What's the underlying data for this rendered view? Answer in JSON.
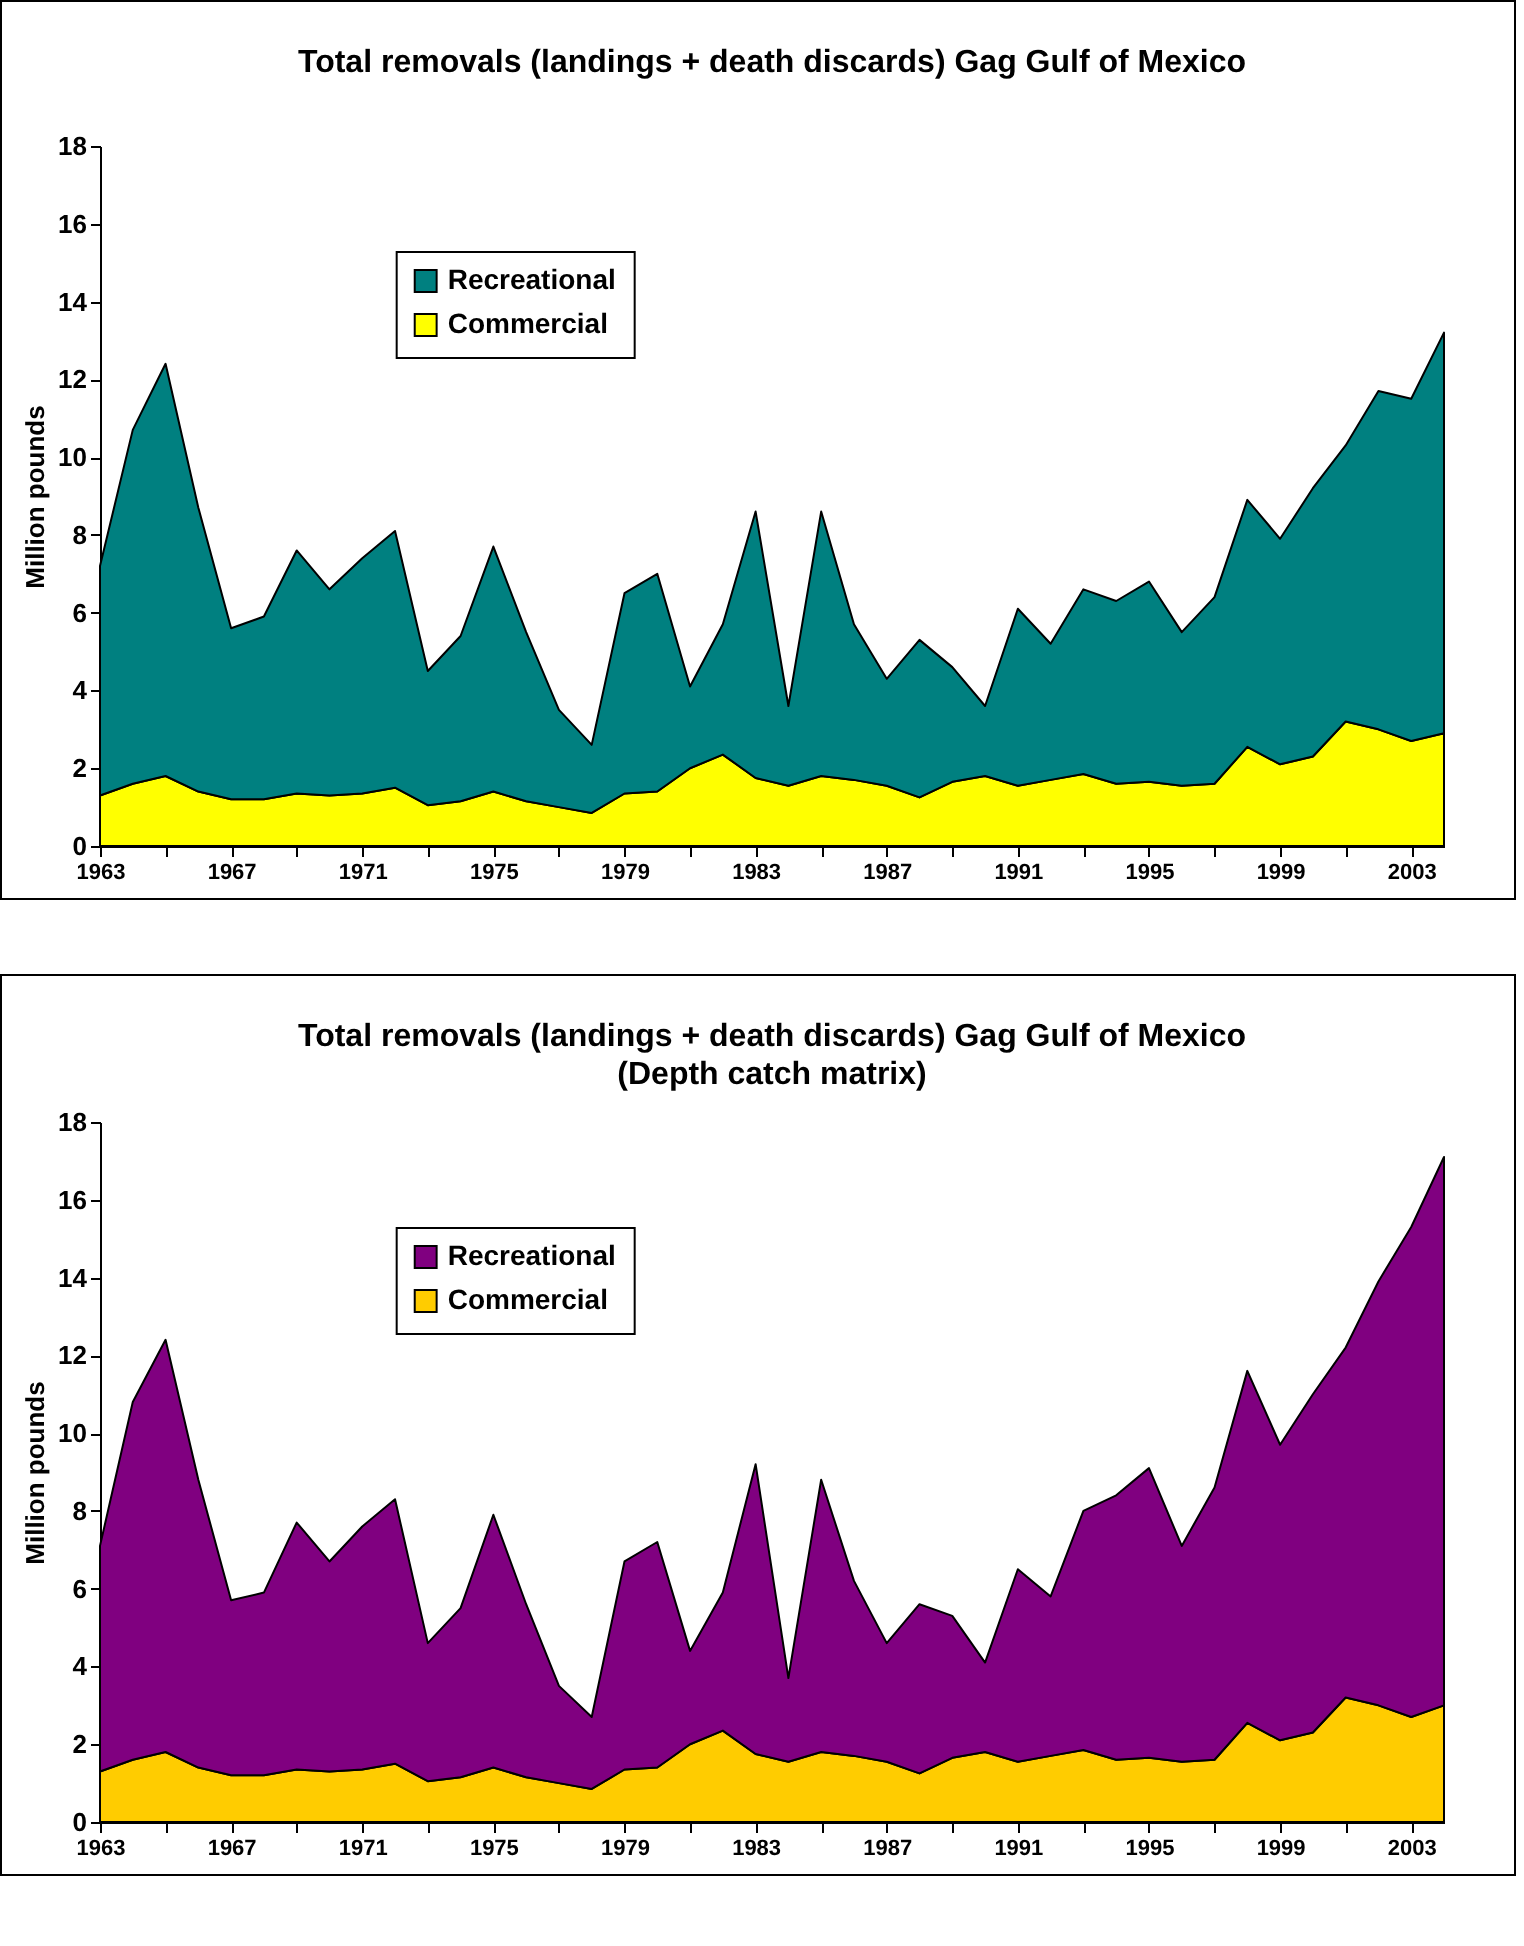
{
  "chart_data": [
    {
      "type": "area",
      "title": "Total removals (landings + death discards) Gag Gulf of Mexico",
      "ylabel": "Million pounds",
      "stacked": true,
      "x": [
        1963,
        1964,
        1965,
        1966,
        1967,
        1968,
        1969,
        1970,
        1971,
        1972,
        1973,
        1974,
        1975,
        1976,
        1977,
        1978,
        1979,
        1980,
        1981,
        1982,
        1983,
        1984,
        1985,
        1986,
        1987,
        1988,
        1989,
        1990,
        1991,
        1992,
        1993,
        1994,
        1995,
        1996,
        1997,
        1998,
        1999,
        2000,
        2001,
        2002,
        2003,
        2004
      ],
      "series": [
        {
          "name": "Commercial",
          "color": "#ffff00",
          "values": [
            1.3,
            1.6,
            1.8,
            1.4,
            1.2,
            1.2,
            1.35,
            1.3,
            1.35,
            1.5,
            1.05,
            1.15,
            1.4,
            1.15,
            1.0,
            0.85,
            1.35,
            1.4,
            2.0,
            2.35,
            1.75,
            1.55,
            1.8,
            1.7,
            1.55,
            1.25,
            1.65,
            1.8,
            1.55,
            1.7,
            1.85,
            1.6,
            1.65,
            1.55,
            1.6,
            2.55,
            2.1,
            2.3,
            3.2,
            3.0,
            2.7,
            2.9
          ]
        },
        {
          "name": "Recreational",
          "color": "#008080",
          "values": [
            5.9,
            9.1,
            10.6,
            7.3,
            4.4,
            4.7,
            6.25,
            5.3,
            6.05,
            6.6,
            3.45,
            4.25,
            6.3,
            4.35,
            2.5,
            1.75,
            5.15,
            5.6,
            2.1,
            3.35,
            6.85,
            2.05,
            6.8,
            4.0,
            2.75,
            4.05,
            2.95,
            1.8,
            4.55,
            3.5,
            4.75,
            4.7,
            5.15,
            3.95,
            4.8,
            6.35,
            5.8,
            6.9,
            7.1,
            8.7,
            8.8,
            10.3
          ]
        }
      ],
      "xlim": [
        1963,
        2004
      ],
      "xticks": [
        1963,
        {
          "value": 1965,
          "label": null
        },
        1967,
        {
          "value": 1969,
          "label": null
        },
        1971,
        {
          "value": 1973,
          "label": null
        },
        1975,
        {
          "value": 1977,
          "label": null
        },
        1979,
        {
          "value": 1981,
          "label": null
        },
        1983,
        {
          "value": 1985,
          "label": null
        },
        1987,
        {
          "value": 1989,
          "label": null
        },
        1991,
        {
          "value": 1993,
          "label": null
        },
        1995,
        {
          "value": 1997,
          "label": null
        },
        1999,
        {
          "value": 2001,
          "label": null
        },
        2003
      ],
      "ylim": [
        0,
        18
      ],
      "yticks": [
        0,
        2,
        4,
        6,
        8,
        10,
        12,
        14,
        16,
        18
      ],
      "grid": false,
      "legend": "top left"
    },
    {
      "type": "area",
      "title": "Total removals (landings + death discards) Gag Gulf of Mexico",
      "subtitle": "(Depth catch matrix)",
      "ylabel": "Million pounds",
      "stacked": true,
      "x": [
        1963,
        1964,
        1965,
        1966,
        1967,
        1968,
        1969,
        1970,
        1971,
        1972,
        1973,
        1974,
        1975,
        1976,
        1977,
        1978,
        1979,
        1980,
        1981,
        1982,
        1983,
        1984,
        1985,
        1986,
        1987,
        1988,
        1989,
        1990,
        1991,
        1992,
        1993,
        1994,
        1995,
        1996,
        1997,
        1998,
        1999,
        2000,
        2001,
        2002,
        2003,
        2004
      ],
      "series": [
        {
          "name": "Commercial",
          "color": "#ffcc00",
          "values": [
            1.3,
            1.6,
            1.8,
            1.4,
            1.2,
            1.2,
            1.35,
            1.3,
            1.35,
            1.5,
            1.05,
            1.15,
            1.4,
            1.15,
            1.0,
            0.85,
            1.35,
            1.4,
            2.0,
            2.35,
            1.75,
            1.55,
            1.8,
            1.7,
            1.55,
            1.25,
            1.65,
            1.8,
            1.55,
            1.7,
            1.85,
            1.6,
            1.65,
            1.55,
            1.6,
            2.55,
            2.1,
            2.3,
            3.2,
            3.0,
            2.7,
            3.0
          ]
        },
        {
          "name": "Recreational",
          "color": "#800080",
          "values": [
            5.8,
            9.2,
            10.6,
            7.4,
            4.5,
            4.7,
            6.35,
            5.4,
            6.25,
            6.8,
            3.55,
            4.35,
            6.5,
            4.45,
            2.5,
            1.85,
            5.35,
            5.8,
            2.4,
            3.55,
            7.45,
            2.15,
            7.0,
            4.5,
            3.05,
            4.35,
            3.65,
            2.3,
            4.95,
            4.1,
            6.15,
            6.8,
            7.45,
            5.55,
            7.0,
            9.05,
            7.6,
            8.7,
            9.0,
            10.9,
            12.6,
            14.1
          ]
        }
      ],
      "xlim": [
        1963,
        2004
      ],
      "xticks": [
        1963,
        {
          "value": 1965,
          "label": null
        },
        1967,
        {
          "value": 1969,
          "label": null
        },
        1971,
        {
          "value": 1973,
          "label": null
        },
        1975,
        {
          "value": 1977,
          "label": null
        },
        1979,
        {
          "value": 1981,
          "label": null
        },
        1983,
        {
          "value": 1985,
          "label": null
        },
        1987,
        {
          "value": 1989,
          "label": null
        },
        1991,
        {
          "value": 1993,
          "label": null
        },
        1995,
        {
          "value": 1997,
          "label": null
        },
        1999,
        {
          "value": 2001,
          "label": null
        },
        2003
      ],
      "ylim": [
        0,
        18
      ],
      "yticks": [
        0,
        2,
        4,
        6,
        8,
        10,
        12,
        14,
        16,
        18
      ],
      "grid": false,
      "legend": "top left"
    }
  ]
}
